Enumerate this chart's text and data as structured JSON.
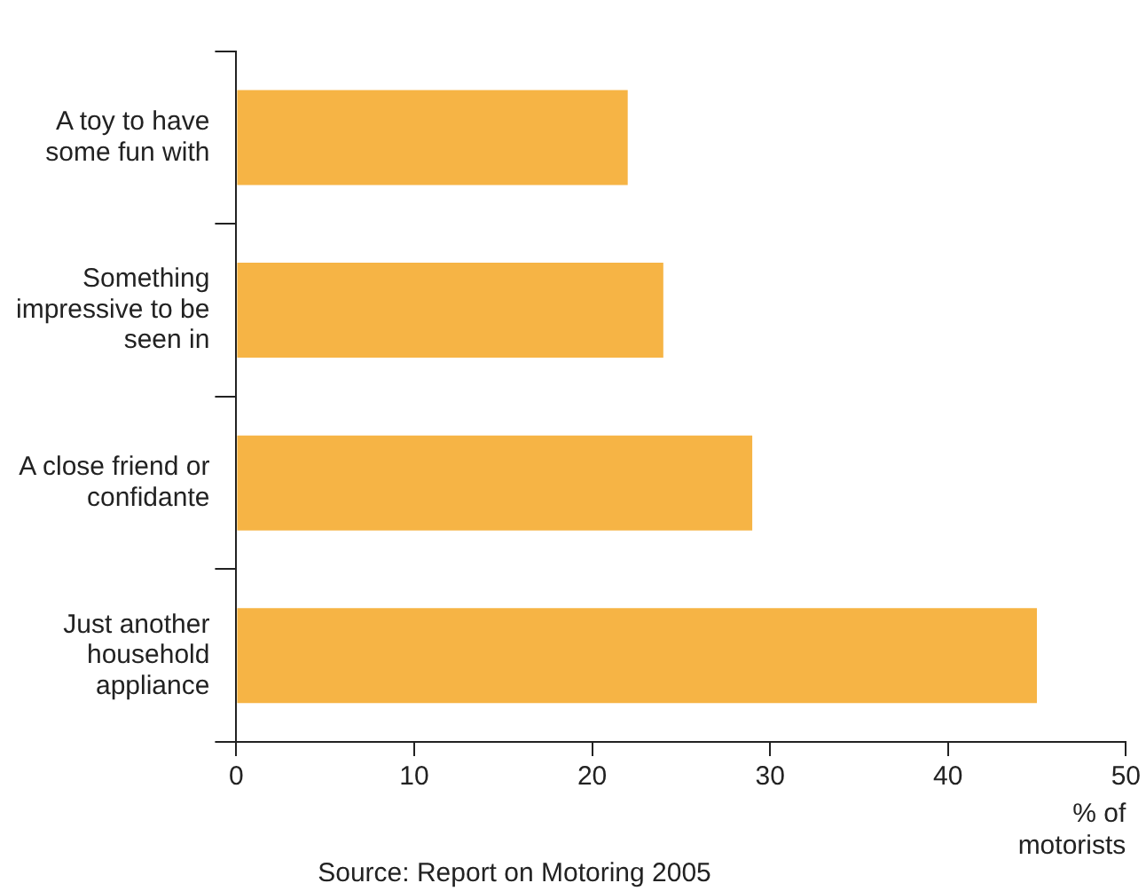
{
  "chart_data": {
    "type": "bar",
    "orientation": "horizontal",
    "categories": [
      "A toy to have some fun with",
      "Something impressive to be seen in",
      "A close friend or confidante",
      "Just another household appliance"
    ],
    "values": [
      22,
      24,
      29,
      45
    ],
    "color": "#f6b445",
    "xlim": [
      0,
      50
    ],
    "xticks": [
      0,
      10,
      20,
      30,
      40,
      50
    ],
    "xlabel": "% of motorists",
    "grid": false,
    "legend": false,
    "annotations": [
      "Source: Report on Motoring 2005"
    ]
  }
}
